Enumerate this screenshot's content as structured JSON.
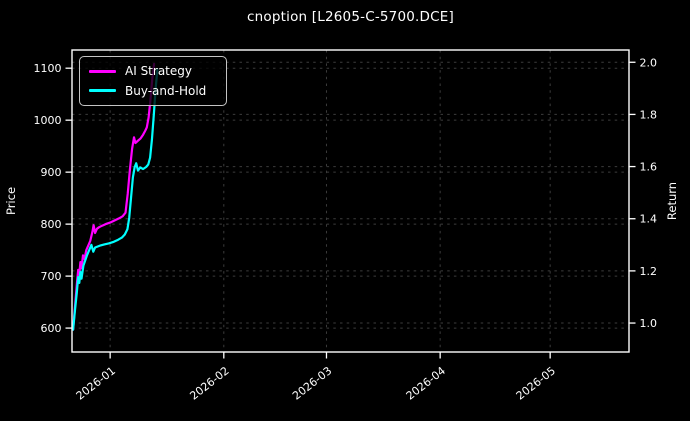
{
  "colors": {
    "background": "#000000",
    "text": "#ffffff",
    "grid": "#3c3c3c",
    "spine": "#ffffff",
    "ai_strategy": "#ff00ff",
    "buy_and_hold": "#00ffff"
  },
  "chart_data": {
    "type": "line",
    "title": "cnoption [L2605-C-5700.DCE]",
    "grid": true,
    "x_axis": {
      "unit": "days from 2026-01-01",
      "domain": [
        -10.4,
        141.5
      ],
      "ticks": [
        {
          "day": 0,
          "label": "2026-01"
        },
        {
          "day": 31,
          "label": "2026-02"
        },
        {
          "day": 59,
          "label": "2026-03"
        },
        {
          "day": 90,
          "label": "2026-04"
        },
        {
          "day": 120,
          "label": "2026-05"
        }
      ]
    },
    "y_left": {
      "label": "Price",
      "domain": [
        554,
        1135
      ],
      "ticks": [
        600,
        700,
        800,
        900,
        1000,
        1100
      ]
    },
    "y_right": {
      "label": "Return",
      "domain": [
        0.889,
        2.047
      ],
      "ticks": [
        "1.0",
        "1.2",
        "1.4",
        "1.6",
        "1.8",
        "2.0"
      ]
    },
    "legend": {
      "position": "upper left",
      "items": [
        {
          "label": "AI Strategy",
          "color": "#ff00ff"
        },
        {
          "label": "Buy-and-Hold",
          "color": "#00ffff"
        }
      ]
    },
    "series": [
      {
        "name": "AI Strategy",
        "color": "#ff00ff",
        "axis": "left",
        "points": [
          [
            -10.1,
            597
          ],
          [
            -9.5,
            648
          ],
          [
            -9,
            690
          ],
          [
            -8.7,
            712
          ],
          [
            -8.4,
            703
          ],
          [
            -8.1,
            727
          ],
          [
            -7.8,
            715
          ],
          [
            -7.4,
            740
          ],
          [
            -7,
            733
          ],
          [
            -6.5,
            750
          ],
          [
            -6,
            758
          ],
          [
            -5.4,
            768
          ],
          [
            -4.8,
            786
          ],
          [
            -4.5,
            798
          ],
          [
            -4.1,
            783
          ],
          [
            -3.6,
            791
          ],
          [
            -3,
            794
          ],
          [
            -2.2,
            797
          ],
          [
            -1.2,
            800
          ],
          [
            0,
            803
          ],
          [
            1.2,
            807
          ],
          [
            2.4,
            811
          ],
          [
            3.4,
            815
          ],
          [
            4.2,
            822
          ],
          [
            4.8,
            858
          ],
          [
            5.4,
            905
          ],
          [
            6,
            945
          ],
          [
            6.5,
            967
          ],
          [
            6.9,
            956
          ],
          [
            7.5,
            960
          ],
          [
            8.3,
            965
          ],
          [
            9,
            972
          ],
          [
            9.6,
            980
          ],
          [
            10,
            986
          ],
          [
            10.5,
            1005
          ],
          [
            11,
            1040
          ],
          [
            11.5,
            1080
          ],
          [
            12,
            1108
          ]
        ]
      },
      {
        "name": "Buy-and-Hold",
        "color": "#00ffff",
        "axis": "left",
        "points": [
          [
            -10.1,
            597
          ],
          [
            -9.6,
            633
          ],
          [
            -9.1,
            668
          ],
          [
            -8.7,
            698
          ],
          [
            -8.4,
            687
          ],
          [
            -8.1,
            708
          ],
          [
            -7.8,
            695
          ],
          [
            -7.3,
            720
          ],
          [
            -6.8,
            730
          ],
          [
            -6.3,
            740
          ],
          [
            -5.7,
            750
          ],
          [
            -5.1,
            760
          ],
          [
            -4.6,
            747
          ],
          [
            -4.1,
            755
          ],
          [
            -3.4,
            757
          ],
          [
            -2.6,
            759
          ],
          [
            -1.6,
            761
          ],
          [
            -0.4,
            763
          ],
          [
            1,
            766
          ],
          [
            2.2,
            770
          ],
          [
            3.2,
            774
          ],
          [
            4,
            780
          ],
          [
            4.7,
            790
          ],
          [
            5.2,
            812
          ],
          [
            5.7,
            850
          ],
          [
            6.2,
            890
          ],
          [
            6.7,
            910
          ],
          [
            7.1,
            917
          ],
          [
            7.6,
            903
          ],
          [
            8.2,
            909
          ],
          [
            9,
            906
          ],
          [
            9.8,
            910
          ],
          [
            10.4,
            915
          ],
          [
            10.9,
            928
          ],
          [
            11.4,
            962
          ],
          [
            11.9,
            1010
          ],
          [
            12.4,
            1060
          ],
          [
            12.9,
            1098
          ]
        ]
      }
    ]
  }
}
